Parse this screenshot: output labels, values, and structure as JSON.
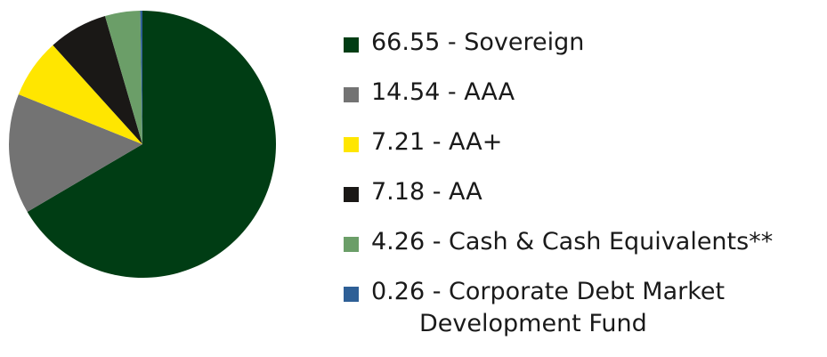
{
  "chart_data": {
    "type": "pie",
    "categories": [
      "66.55 - Sovereign",
      "14.54 - AAA",
      "7.21 - AA+",
      "7.18 - AA",
      "4.26 - Cash & Cash Equivalents**",
      "0.26 - Corporate Debt Market Development Fund"
    ],
    "values": [
      66.55,
      14.54,
      7.21,
      7.18,
      4.26,
      0.26
    ],
    "colors": [
      "#003d14",
      "#737373",
      "#ffe600",
      "#1a1816",
      "#6b9e68",
      "#2e5f96"
    ],
    "legend": "right"
  }
}
